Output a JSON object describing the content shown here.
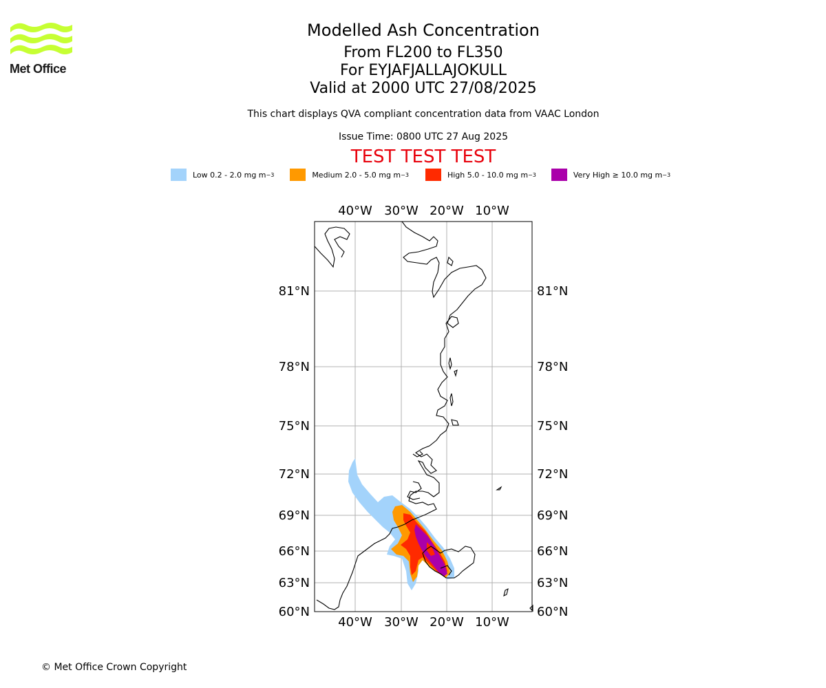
{
  "header": {
    "title": "Modelled Ash Concentration",
    "levels": "From FL200 to FL350",
    "volcano": "For EYJAFJALLAJOKULL",
    "valid": "Valid at 2000 UTC 27/08/2025",
    "description": "This chart displays QVA compliant concentration data from VAAC London",
    "issue_time": "Issue Time: 0800 UTC 27 Aug 2025",
    "test_banner": "TEST TEST TEST"
  },
  "logo": {
    "text": "Met Office",
    "color": "#c6ff33",
    "icon": "met-office-waves-logo"
  },
  "legend": [
    {
      "label": "Low 0.2 - 2.0 mg m",
      "unit_exp": "−3",
      "color": "#a3d3fb"
    },
    {
      "label": "Medium 2.0 - 5.0 mg m",
      "unit_exp": "−3",
      "color": "#ff9900"
    },
    {
      "label": "High 5.0 - 10.0 mg m",
      "unit_exp": "−3",
      "color": "#ff2a00"
    },
    {
      "label": "Very High  ≥  10.0 mg m",
      "unit_exp": "−3",
      "color": "#aa00aa"
    }
  ],
  "map": {
    "lon_ticks": [
      "40°W",
      "30°W",
      "20°W",
      "10°W"
    ],
    "lat_ticks": [
      "81°N",
      "78°N",
      "75°N",
      "72°N",
      "69°N",
      "66°N",
      "63°N",
      "60°N"
    ]
  },
  "footer": {
    "copyright": "© Met Office Crown Copyright"
  }
}
